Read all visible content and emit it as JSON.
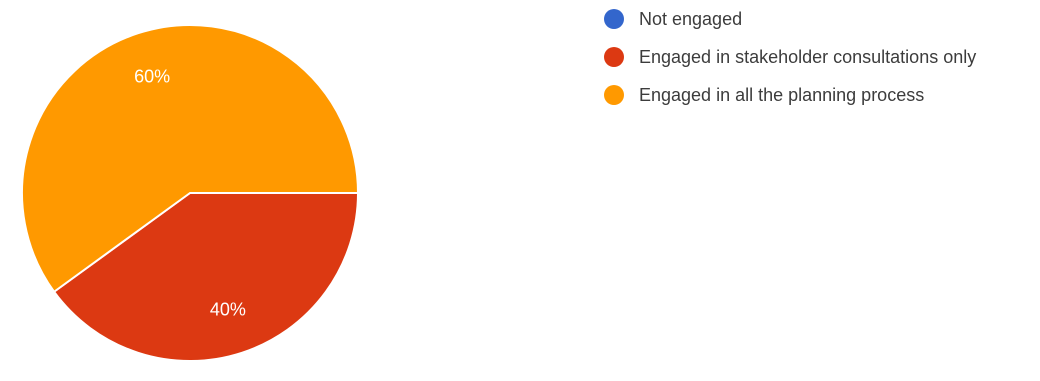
{
  "chart_data": {
    "type": "pie",
    "categories": [
      "Not engaged",
      "Engaged in stakeholder consultations only",
      "Engaged in all the planning process"
    ],
    "values": [
      0,
      40,
      60
    ],
    "unit": "%",
    "data_labels": [
      "",
      "40%",
      "60%"
    ],
    "colors": [
      "#3366cc",
      "#dc3912",
      "#ff9900"
    ],
    "legend_position": "right",
    "start": "3 o'clock",
    "direction": "clockwise",
    "title": ""
  },
  "legend": {
    "items": [
      {
        "label": "Not engaged",
        "color": "#3366cc"
      },
      {
        "label": "Engaged in stakeholder consultations only",
        "color": "#dc3912"
      },
      {
        "label": "Engaged in all the planning process",
        "color": "#ff9900"
      }
    ]
  }
}
